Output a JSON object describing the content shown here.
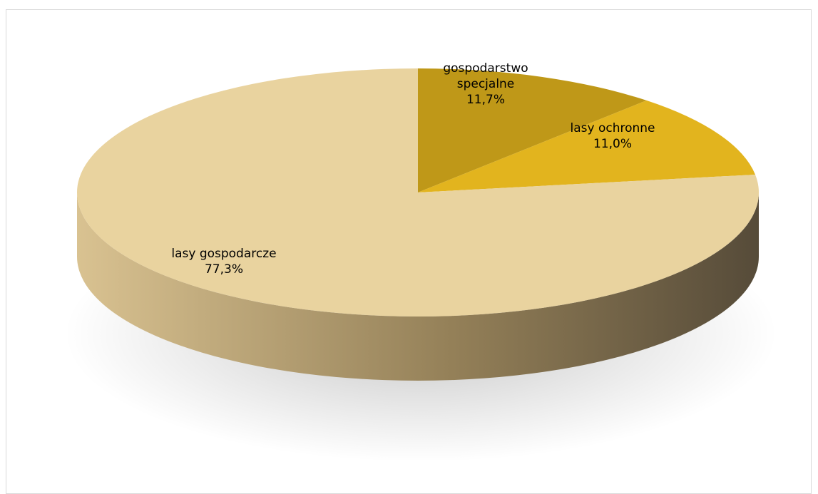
{
  "chart_data": {
    "type": "pie",
    "title": "",
    "legend": "none",
    "slices": [
      {
        "label": "gospodarstwo specjalne",
        "label_lines": [
          "gospodarstwo",
          "specjalne"
        ],
        "value": 11.7,
        "value_label": "11,7%",
        "color": "#bf9818"
      },
      {
        "label": "lasy ochronne",
        "label_lines": [
          "lasy ochronne"
        ],
        "value": 11.0,
        "value_label": "11,0%",
        "color": "#e2b41e"
      },
      {
        "label": "lasy gospodarcze",
        "label_lines": [
          "lasy gospodarcze"
        ],
        "value": 77.3,
        "value_label": "77,3%",
        "color": "#e9d39f"
      }
    ],
    "side_colors": {
      "light": "#d9c291",
      "dark": "#5b4f3b"
    }
  }
}
